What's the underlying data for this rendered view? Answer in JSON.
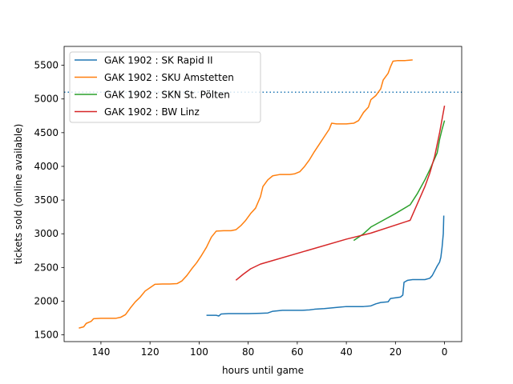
{
  "chart_data": {
    "type": "line",
    "xlabel": "hours until game",
    "ylabel": "tickets sold (online available)",
    "x_inverted": true,
    "xlim": [
      155,
      -7
    ],
    "ylim": [
      1400,
      5780
    ],
    "xticks": [
      140,
      120,
      100,
      80,
      60,
      40,
      20,
      0
    ],
    "yticks": [
      1500,
      2000,
      2500,
      3000,
      3500,
      4000,
      4500,
      5000,
      5500
    ],
    "grid": false,
    "legend_position": "top-left",
    "reference_line": {
      "y": 5100,
      "style": "dotted",
      "color": "#1f77b4"
    },
    "series": [
      {
        "name": "GAK 1902 : SK Rapid II",
        "color": "#1f77b4",
        "points": [
          [
            97,
            1790
          ],
          [
            93,
            1790
          ],
          [
            92,
            1780
          ],
          [
            91,
            1810
          ],
          [
            88,
            1815
          ],
          [
            84,
            1815
          ],
          [
            80,
            1815
          ],
          [
            75,
            1820
          ],
          [
            72,
            1825
          ],
          [
            70,
            1850
          ],
          [
            66,
            1865
          ],
          [
            62,
            1865
          ],
          [
            58,
            1865
          ],
          [
            55,
            1870
          ],
          [
            53,
            1880
          ],
          [
            49,
            1890
          ],
          [
            46,
            1900
          ],
          [
            43,
            1910
          ],
          [
            40,
            1920
          ],
          [
            36,
            1920
          ],
          [
            33,
            1920
          ],
          [
            30,
            1930
          ],
          [
            28,
            1960
          ],
          [
            26,
            1980
          ],
          [
            23,
            1990
          ],
          [
            22,
            2040
          ],
          [
            20,
            2050
          ],
          [
            18,
            2060
          ],
          [
            17,
            2090
          ],
          [
            16.5,
            2280
          ],
          [
            15,
            2310
          ],
          [
            13,
            2320
          ],
          [
            10,
            2320
          ],
          [
            8,
            2320
          ],
          [
            6,
            2340
          ],
          [
            5,
            2380
          ],
          [
            4,
            2450
          ],
          [
            3,
            2520
          ],
          [
            2,
            2580
          ],
          [
            1.5,
            2650
          ],
          [
            1,
            2800
          ],
          [
            0.5,
            3000
          ],
          [
            0.3,
            3270
          ]
        ]
      },
      {
        "name": "GAK 1902 : SKU Amstetten",
        "color": "#ff7f0e",
        "points": [
          [
            149,
            1600
          ],
          [
            147,
            1620
          ],
          [
            146,
            1670
          ],
          [
            144,
            1700
          ],
          [
            143,
            1740
          ],
          [
            140,
            1745
          ],
          [
            137,
            1745
          ],
          [
            134,
            1745
          ],
          [
            132,
            1760
          ],
          [
            130,
            1800
          ],
          [
            128,
            1900
          ],
          [
            126,
            1990
          ],
          [
            124,
            2060
          ],
          [
            122,
            2150
          ],
          [
            120,
            2200
          ],
          [
            118,
            2250
          ],
          [
            115,
            2255
          ],
          [
            112,
            2255
          ],
          [
            109,
            2260
          ],
          [
            107,
            2300
          ],
          [
            105,
            2380
          ],
          [
            103,
            2480
          ],
          [
            101,
            2570
          ],
          [
            99,
            2680
          ],
          [
            97,
            2800
          ],
          [
            95,
            2950
          ],
          [
            93,
            3040
          ],
          [
            90,
            3045
          ],
          [
            87,
            3045
          ],
          [
            85,
            3060
          ],
          [
            83,
            3120
          ],
          [
            81,
            3200
          ],
          [
            79,
            3300
          ],
          [
            77,
            3380
          ],
          [
            75,
            3550
          ],
          [
            74,
            3700
          ],
          [
            72,
            3800
          ],
          [
            70,
            3860
          ],
          [
            67,
            3880
          ],
          [
            63,
            3880
          ],
          [
            61,
            3890
          ],
          [
            59,
            3920
          ],
          [
            57,
            4000
          ],
          [
            55,
            4100
          ],
          [
            53,
            4220
          ],
          [
            51,
            4330
          ],
          [
            49,
            4440
          ],
          [
            47,
            4550
          ],
          [
            46,
            4640
          ],
          [
            44,
            4630
          ],
          [
            40,
            4630
          ],
          [
            37,
            4640
          ],
          [
            35,
            4680
          ],
          [
            33,
            4800
          ],
          [
            31,
            4880
          ],
          [
            30,
            4990
          ],
          [
            28,
            5050
          ],
          [
            26,
            5150
          ],
          [
            25,
            5280
          ],
          [
            23,
            5380
          ],
          [
            22,
            5480
          ],
          [
            21,
            5560
          ],
          [
            19,
            5570
          ],
          [
            16,
            5570
          ],
          [
            13,
            5580
          ]
        ]
      },
      {
        "name": "GAK 1902 : SKN St. Pölten",
        "color": "#2ca02c",
        "points": [
          [
            37,
            2900
          ],
          [
            33,
            3000
          ],
          [
            30,
            3100
          ],
          [
            25,
            3200
          ],
          [
            20,
            3300
          ],
          [
            14,
            3430
          ],
          [
            11,
            3600
          ],
          [
            8,
            3800
          ],
          [
            6,
            3950
          ],
          [
            3,
            4200
          ],
          [
            2,
            4400
          ],
          [
            1,
            4550
          ],
          [
            0,
            4680
          ]
        ]
      },
      {
        "name": "GAK 1902 : BW Linz",
        "color": "#d62728",
        "points": [
          [
            85,
            2310
          ],
          [
            82,
            2400
          ],
          [
            79,
            2480
          ],
          [
            75,
            2550
          ],
          [
            40,
            2920
          ],
          [
            30,
            3010
          ],
          [
            14,
            3200
          ],
          [
            8,
            3700
          ],
          [
            6,
            3900
          ],
          [
            4,
            4150
          ],
          [
            2,
            4500
          ],
          [
            0,
            4900
          ]
        ]
      }
    ]
  }
}
